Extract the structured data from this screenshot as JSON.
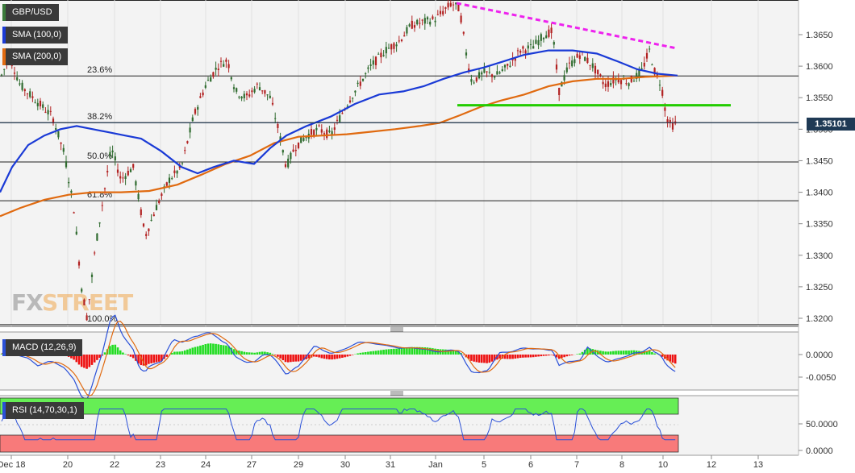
{
  "chart_data": {
    "type": "candlestick",
    "symbol": "GBP/USD",
    "indicators": {
      "sma_fast_label": "SMA (100,0)",
      "sma_slow_label": "SMA (200,0)",
      "macd_label": "MACD (12,26,9)",
      "rsi_label": "RSI (14,70,30,1)"
    },
    "last_price": "1.35101",
    "ylim": [
      1.3185,
      1.3705
    ],
    "y_ticks": [
      "1.3650",
      "1.3600",
      "1.3550",
      "1.3500",
      "1.3450",
      "1.3400",
      "1.3350",
      "1.3300",
      "1.3250",
      "1.3200"
    ],
    "x_ticks": [
      "Dec 18",
      "20",
      "22",
      "23",
      "24",
      "27",
      "29",
      "30",
      "31",
      "Jan",
      "5",
      "6",
      "7",
      "8",
      "10",
      "12",
      "13"
    ],
    "fib_levels": [
      {
        "label": "23.6%",
        "value": 1.35845
      },
      {
        "label": "38.2%",
        "value": 1.35105
      },
      {
        "label": "50.0%",
        "value": 1.3448
      },
      {
        "label": "61.8%",
        "value": 1.33865
      },
      {
        "label": "100.0%",
        "value": 1.319
      }
    ],
    "support_line": {
      "value": 1.3538,
      "color": "#22cc00"
    },
    "trendline": {
      "from": 1.37,
      "to": 1.3628,
      "color": "#ee22ee"
    },
    "sma_fast_color": "#1a3ad6",
    "sma_slow_color": "#e06a10",
    "macd_ticks": [
      "0.0000",
      "-0.0050"
    ],
    "rsi_ticks": [
      "50.0000",
      "0.0000"
    ],
    "rsi_overbought_color": "#66ee55",
    "rsi_oversold_color": "#f87a7a",
    "watermark": "FXSTREET"
  }
}
